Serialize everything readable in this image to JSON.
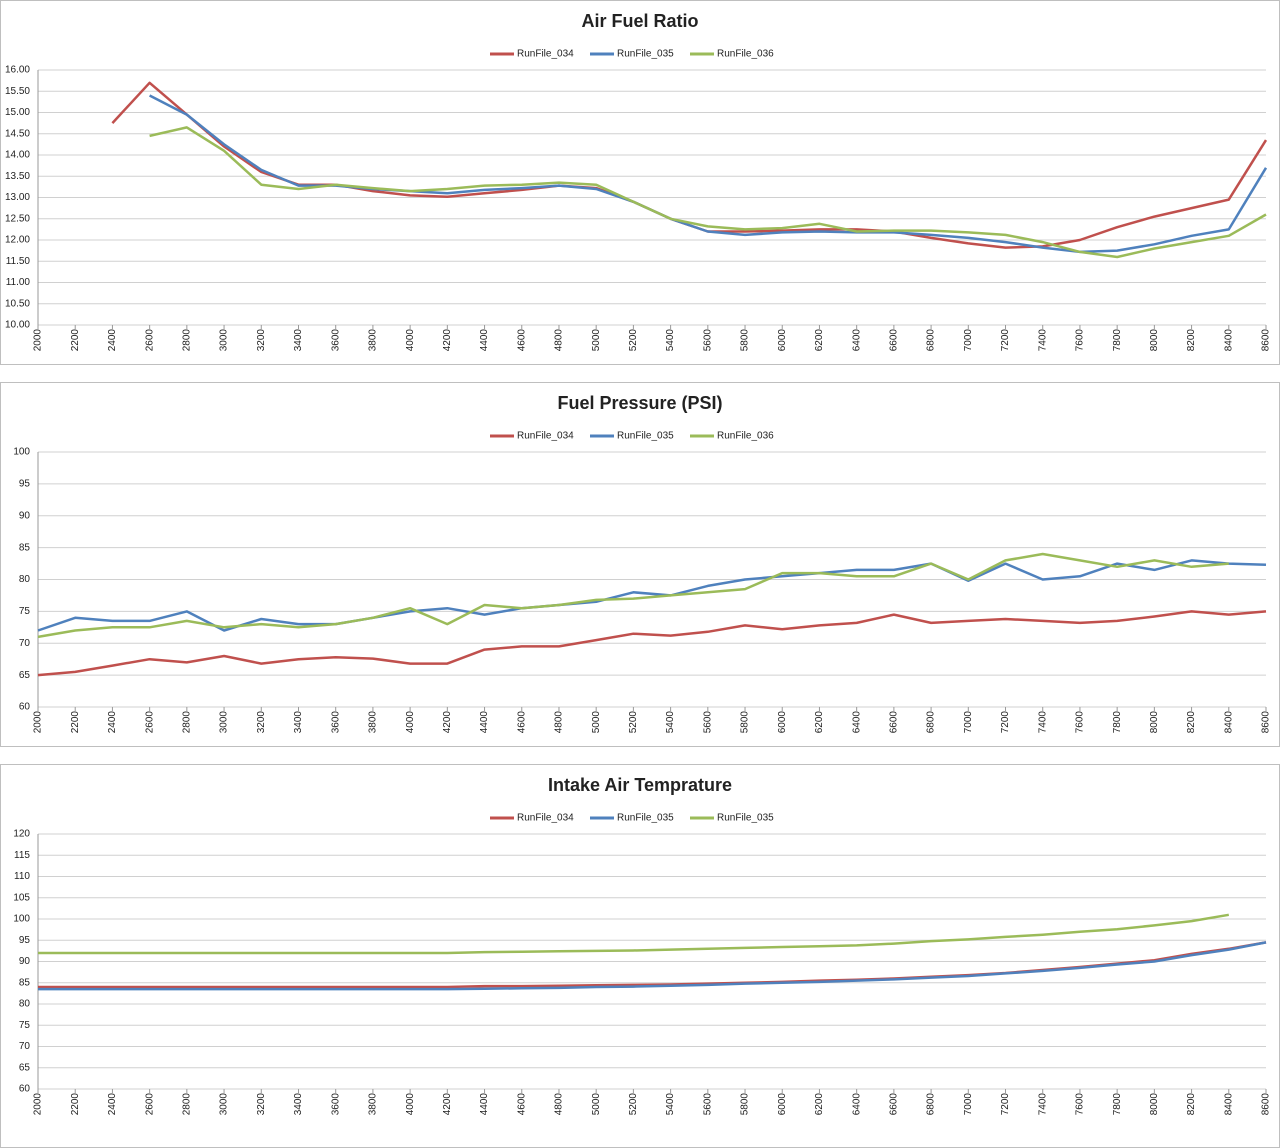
{
  "chart_data": [
    {
      "type": "line",
      "title": "Air Fuel Ratio",
      "x": [
        2000,
        2200,
        2400,
        2600,
        2800,
        3000,
        3200,
        3400,
        3600,
        3800,
        4000,
        4200,
        4400,
        4600,
        4800,
        5000,
        5200,
        5400,
        5600,
        5800,
        6000,
        6200,
        6400,
        6600,
        6800,
        7000,
        7200,
        7400,
        7600,
        7800,
        8000,
        8200,
        8400,
        8600
      ],
      "xlim": [
        2000,
        8600
      ],
      "xticks": [
        2000,
        2200,
        2400,
        2600,
        2800,
        3000,
        3200,
        3400,
        3600,
        3800,
        4000,
        4200,
        4400,
        4600,
        4800,
        5000,
        5200,
        5400,
        5600,
        5800,
        6000,
        6200,
        6400,
        6600,
        6800,
        7000,
        7200,
        7400,
        7600,
        7800,
        8000,
        8200,
        8400,
        8600
      ],
      "ylim": [
        10,
        16
      ],
      "yticks": [
        {
          "value": 10,
          "label": "10.00"
        },
        {
          "value": 10.5,
          "label": "10.50"
        },
        {
          "value": 11,
          "label": "11.00"
        },
        {
          "value": 11.5,
          "label": "11.50"
        },
        {
          "value": 12,
          "label": "12.00"
        },
        {
          "value": 12.5,
          "label": "12.50"
        },
        {
          "value": 13,
          "label": "13.00"
        },
        {
          "value": 13.5,
          "label": "13.50"
        },
        {
          "value": 14,
          "label": "14.00"
        },
        {
          "value": 14.5,
          "label": "14.50"
        },
        {
          "value": 15,
          "label": "15.00"
        },
        {
          "value": 15.5,
          "label": "15.50"
        },
        {
          "value": 16,
          "label": "16.00"
        }
      ],
      "grid": true,
      "legend": "top",
      "series": [
        {
          "name": "RunFile_034",
          "color": "#c0504d",
          "values": [
            null,
            null,
            14.75,
            15.7,
            14.95,
            14.2,
            13.6,
            13.3,
            13.3,
            13.15,
            13.05,
            13.02,
            13.1,
            13.18,
            13.28,
            13.22,
            12.9,
            12.5,
            12.2,
            12.2,
            12.22,
            12.25,
            12.25,
            12.2,
            12.05,
            11.92,
            11.82,
            11.85,
            12.0,
            12.3,
            12.55,
            12.75,
            12.95,
            14.35
          ]
        },
        {
          "name": "RunFile_035",
          "color": "#4f81bd",
          "values": [
            null,
            null,
            null,
            15.4,
            14.95,
            14.25,
            13.65,
            13.28,
            13.28,
            13.2,
            13.15,
            13.1,
            13.18,
            13.22,
            13.28,
            13.2,
            12.9,
            12.5,
            12.2,
            12.12,
            12.18,
            12.2,
            12.18,
            12.18,
            12.12,
            12.05,
            11.95,
            11.82,
            11.72,
            11.75,
            11.9,
            12.1,
            12.25,
            13.7
          ]
        },
        {
          "name": "RunFile_036",
          "color": "#9bbb59",
          "values": [
            null,
            null,
            null,
            14.45,
            14.65,
            14.1,
            13.3,
            13.2,
            13.3,
            13.22,
            13.15,
            13.2,
            13.28,
            13.3,
            13.35,
            13.3,
            12.9,
            12.5,
            12.32,
            12.25,
            12.28,
            12.38,
            12.2,
            12.22,
            12.22,
            12.18,
            12.12,
            11.95,
            11.72,
            11.6,
            11.8,
            11.95,
            12.1,
            12.6
          ]
        }
      ]
    },
    {
      "type": "line",
      "title": "Fuel Pressure (PSI)",
      "x": [
        2000,
        2200,
        2400,
        2600,
        2800,
        3000,
        3200,
        3400,
        3600,
        3800,
        4000,
        4200,
        4400,
        4600,
        4800,
        5000,
        5200,
        5400,
        5600,
        5800,
        6000,
        6200,
        6400,
        6600,
        6800,
        7000,
        7200,
        7400,
        7600,
        7800,
        8000,
        8200,
        8400,
        8600
      ],
      "xlim": [
        2000,
        8600
      ],
      "xticks": [
        2000,
        2200,
        2400,
        2600,
        2800,
        3000,
        3200,
        3400,
        3600,
        3800,
        4000,
        4200,
        4400,
        4600,
        4800,
        5000,
        5200,
        5400,
        5600,
        5800,
        6000,
        6200,
        6400,
        6600,
        6800,
        7000,
        7200,
        7400,
        7600,
        7800,
        8000,
        8200,
        8400,
        8600
      ],
      "ylim": [
        60,
        100
      ],
      "yticks": [
        60,
        65,
        70,
        75,
        80,
        85,
        90,
        95,
        100
      ],
      "grid": true,
      "legend": "top",
      "series": [
        {
          "name": "RunFile_034",
          "color": "#c0504d",
          "values": [
            65,
            65.5,
            66.5,
            67.5,
            67,
            68,
            66.8,
            67.5,
            67.8,
            67.6,
            66.8,
            66.8,
            69,
            69.5,
            69.5,
            70.5,
            71.5,
            71.2,
            71.8,
            72.8,
            72.2,
            72.8,
            73.2,
            74.5,
            73.2,
            73.5,
            73.8,
            73.5,
            73.2,
            73.5,
            74.2,
            75,
            74.5,
            75
          ]
        },
        {
          "name": "RunFile_035",
          "color": "#4f81bd",
          "values": [
            72,
            74,
            73.5,
            73.5,
            75,
            72,
            73.8,
            73,
            73,
            74,
            75,
            75.5,
            74.5,
            75.5,
            76,
            76.5,
            78,
            77.5,
            79,
            80,
            80.5,
            81,
            81.5,
            81.5,
            82.5,
            79.8,
            82.5,
            80,
            80.5,
            82.5,
            81.5,
            83,
            82.5,
            82.3
          ]
        },
        {
          "name": "RunFile_036",
          "color": "#9bbb59",
          "values": [
            71,
            72,
            72.5,
            72.5,
            73.5,
            72.5,
            73,
            72.5,
            73,
            74,
            75.5,
            73,
            76,
            75.5,
            76,
            76.8,
            77,
            77.5,
            78,
            78.5,
            81,
            81,
            80.5,
            80.5,
            82.5,
            80,
            83,
            84,
            83,
            82,
            83,
            82,
            82.5,
            null
          ]
        }
      ]
    },
    {
      "type": "line",
      "title": "Intake Air Temprature",
      "x": [
        2000,
        2200,
        2400,
        2600,
        2800,
        3000,
        3200,
        3400,
        3600,
        3800,
        4000,
        4200,
        4400,
        4600,
        4800,
        5000,
        5200,
        5400,
        5600,
        5800,
        6000,
        6200,
        6400,
        6600,
        6800,
        7000,
        7200,
        7400,
        7600,
        7800,
        8000,
        8200,
        8400,
        8600
      ],
      "xlim": [
        2000,
        8600
      ],
      "xticks": [
        2000,
        2200,
        2400,
        2600,
        2800,
        3000,
        3200,
        3400,
        3600,
        3800,
        4000,
        4200,
        4400,
        4600,
        4800,
        5000,
        5200,
        5400,
        5600,
        5800,
        6000,
        6200,
        6400,
        6600,
        6800,
        7000,
        7200,
        7400,
        7600,
        7800,
        8000,
        8200,
        8400,
        8600
      ],
      "ylim": [
        60,
        120
      ],
      "yticks": [
        60,
        65,
        70,
        75,
        80,
        85,
        90,
        95,
        100,
        105,
        110,
        115,
        120
      ],
      "grid": true,
      "legend": "top",
      "series": [
        {
          "name": "RunFile_034",
          "color": "#c0504d",
          "values": [
            84,
            84,
            84,
            84,
            84,
            84,
            84,
            84,
            84,
            84,
            84,
            84,
            84.2,
            84.2,
            84.3,
            84.4,
            84.5,
            84.6,
            84.8,
            85,
            85.2,
            85.5,
            85.7,
            86,
            86.4,
            86.8,
            87.3,
            88,
            88.7,
            89.5,
            90.3,
            91.8,
            93,
            94.5
          ]
        },
        {
          "name": "RunFile_035",
          "color": "#4f81bd",
          "values": [
            83.5,
            83.5,
            83.5,
            83.5,
            83.5,
            83.5,
            83.5,
            83.5,
            83.5,
            83.5,
            83.5,
            83.5,
            83.6,
            83.7,
            83.8,
            84,
            84.1,
            84.3,
            84.5,
            84.8,
            85,
            85.2,
            85.5,
            85.8,
            86.2,
            86.6,
            87.2,
            87.8,
            88.5,
            89.3,
            90,
            91.5,
            92.8,
            94.5
          ]
        },
        {
          "name": "RunFile_035",
          "color": "#9bbb59",
          "values": [
            92,
            92,
            92,
            92,
            92,
            92,
            92,
            92,
            92,
            92,
            92,
            92,
            92.2,
            92.3,
            92.4,
            92.5,
            92.6,
            92.8,
            93,
            93.2,
            93.4,
            93.6,
            93.8,
            94.2,
            94.8,
            95.2,
            95.8,
            96.3,
            97,
            97.6,
            98.5,
            99.5,
            101,
            null
          ]
        }
      ]
    }
  ]
}
